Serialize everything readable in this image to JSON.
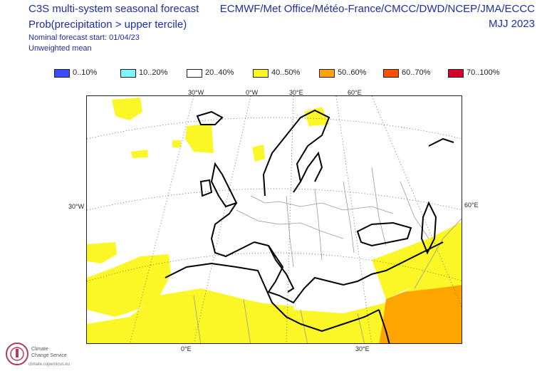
{
  "header": {
    "title": "C3S multi-system seasonal forecast",
    "subtitle": "Prob(precipitation > upper tercile)",
    "forecast_start": "Nominal forecast start: 01/04/23",
    "mean_type": "Unweighted mean",
    "centres": "ECMWF/Met Office/Météo-France/CMCC/DWD/NCEP/JMA/ECCC",
    "period": "MJJ 2023"
  },
  "legend": [
    {
      "label": "0..10%",
      "color": "#3a4cff"
    },
    {
      "label": "10..20%",
      "color": "#7ff7ff"
    },
    {
      "label": "20..40%",
      "color": "#ffffff"
    },
    {
      "label": "40..50%",
      "color": "#fbf727"
    },
    {
      "label": "50..60%",
      "color": "#ffa500"
    },
    {
      "label": "60..70%",
      "color": "#ff4f00"
    },
    {
      "label": "70..100%",
      "color": "#d4002d"
    }
  ],
  "axes": {
    "top": [
      "30°W",
      "0°W",
      "30°E",
      "60°E"
    ],
    "left": "30°W",
    "right": "60°E",
    "bottom": [
      "0°E",
      "30°E"
    ]
  },
  "logo": {
    "line1": "Climate",
    "line2": "Change Service",
    "url": "climate.copernicus.eu"
  }
}
